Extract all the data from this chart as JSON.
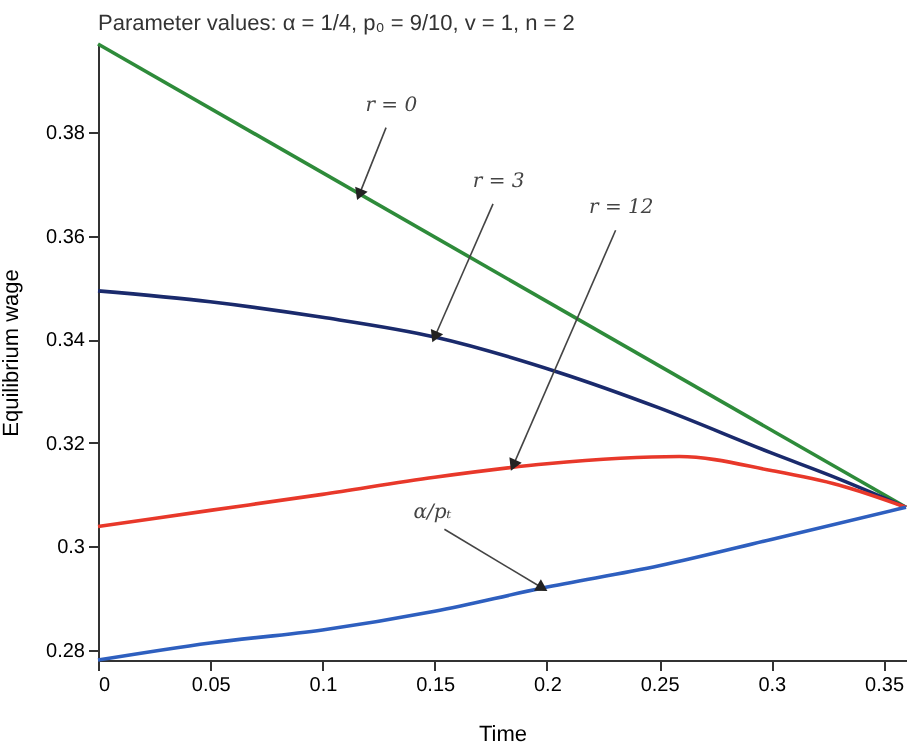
{
  "chart_data": {
    "type": "line",
    "title": "Parameter values:  α = 1/4, p₀ = 9/10, v = 1, n = 2",
    "xlabel": "Time",
    "ylabel": "Equilibrium wage",
    "xlim": [
      0,
      0.36
    ],
    "xticks": [
      0,
      0.05,
      0.1,
      0.15,
      0.2,
      0.25,
      0.3,
      0.35
    ],
    "ylim": [
      0.278,
      0.397
    ],
    "yticks": [
      0.28,
      0.3,
      0.32,
      0.34,
      0.36,
      0.38
    ],
    "grid": false,
    "marker": "none",
    "line_style": "solid",
    "series": [
      {
        "color": "#2e8b3a",
        "x": [
          0,
          0.36
        ],
        "values": [
          0.397,
          0.3075
        ]
      },
      {
        "color": "#1a2a6c",
        "x": [
          0,
          0.05,
          0.1,
          0.15,
          0.205,
          0.25,
          0.3,
          0.33,
          0.36
        ],
        "values": [
          0.3493,
          0.3472,
          0.3442,
          0.3404,
          0.3336,
          0.3267,
          0.318,
          0.313,
          0.3075
        ]
      },
      {
        "color": "#e8382a",
        "x": [
          0,
          0.05,
          0.1,
          0.15,
          0.2,
          0.259,
          0.3,
          0.33,
          0.36
        ],
        "values": [
          0.3038,
          0.3069,
          0.31,
          0.3133,
          0.3159,
          0.3173,
          0.3146,
          0.3118,
          0.3075
        ]
      },
      {
        "color": "#2e5fbf",
        "x": [
          0,
          0.05,
          0.1,
          0.15,
          0.198,
          0.25,
          0.3,
          0.36
        ],
        "values": [
          0.278,
          0.2813,
          0.2838,
          0.2874,
          0.2919,
          0.2962,
          0.3013,
          0.3075
        ]
      }
    ],
    "annotations": [
      {
        "text": "r = 0",
        "x": 0.1164,
        "y": 0.3679
      },
      {
        "text": "r = 3",
        "x": 0.15,
        "y": 0.3404
      },
      {
        "text": "r = 12",
        "x": 0.185,
        "y": 0.3156
      },
      {
        "text": "α/pₜ",
        "x": 0.198,
        "y": 0.2919
      }
    ]
  }
}
